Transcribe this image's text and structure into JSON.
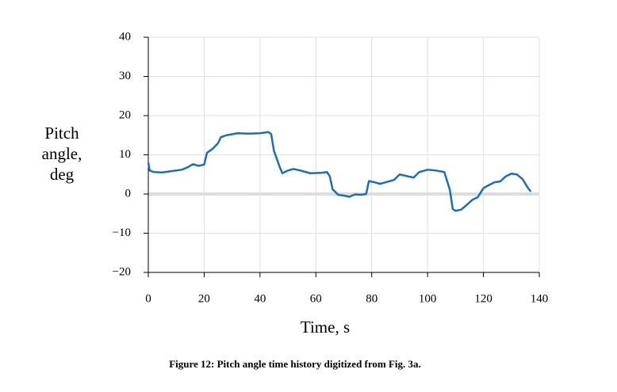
{
  "chart_data": {
    "type": "line",
    "ylabel": [
      "Pitch",
      "angle,",
      "deg"
    ],
    "xlabel": "Time, s",
    "caption": "Figure 12: Pitch angle time history digitized from Fig. 3a.",
    "color": "#1a6fb5",
    "grid": true,
    "hline": 0,
    "xlim": [
      0,
      140
    ],
    "xticks": [
      0,
      20,
      40,
      60,
      80,
      100,
      120,
      140
    ],
    "ylim": [
      -20,
      40
    ],
    "yticks": [
      {
        "value": -20,
        "label": "−20"
      },
      {
        "value": -10,
        "label": "−10"
      },
      0,
      10,
      20,
      30,
      40
    ],
    "x": [
      0,
      0.5,
      2,
      5,
      8,
      12,
      14,
      16,
      18,
      20,
      21,
      23,
      25,
      26,
      28,
      32,
      36,
      40,
      43,
      44,
      45,
      47,
      48,
      50,
      52,
      55,
      58,
      62,
      64,
      65,
      66,
      68,
      70,
      72,
      74,
      76,
      78,
      79,
      81,
      83,
      85,
      88,
      90,
      93,
      95,
      97,
      100,
      103,
      106,
      108,
      109,
      110,
      112,
      114,
      116,
      118,
      120,
      122,
      124,
      126,
      128,
      130,
      132,
      134,
      136,
      137
    ],
    "values": [
      8,
      6,
      5.6,
      5.5,
      5.8,
      6.2,
      6.8,
      7.6,
      7.2,
      7.5,
      10.5,
      11.5,
      13,
      14.5,
      15,
      15.5,
      15.4,
      15.5,
      15.8,
      15.3,
      11,
      7,
      5.3,
      6,
      6.4,
      5.9,
      5.3,
      5.4,
      5.6,
      4.5,
      1.2,
      -0.2,
      -0.4,
      -0.7,
      -0.1,
      -0.2,
      0,
      3.3,
      3,
      2.6,
      3,
      3.6,
      5,
      4.5,
      4.2,
      5.6,
      6.2,
      6,
      5.6,
      1,
      -3.8,
      -4.3,
      -4,
      -2.8,
      -1.5,
      -0.8,
      1.5,
      2.3,
      3,
      3.2,
      4.5,
      5.2,
      5,
      3.8,
      1.5,
      0.6
    ]
  }
}
